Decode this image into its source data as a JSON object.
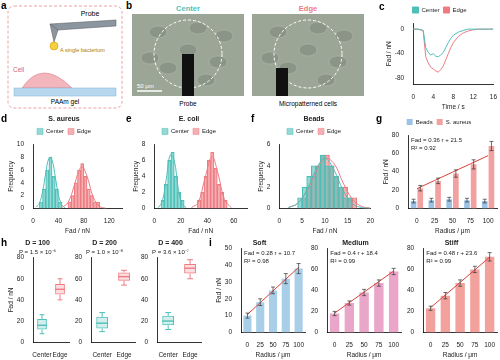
{
  "diagram": {
    "a": {
      "panel": "a",
      "probe": "Probe",
      "bacterium": "A single bacterium",
      "cell": "Cell",
      "substrate": "PAAm gel"
    },
    "b": {
      "panel": "b",
      "images": [
        "Center",
        "Edge"
      ],
      "colors": [
        "#4fbfb8",
        "#ee7b82"
      ],
      "scale_bar": "50 μm",
      "labels": [
        "Probe",
        "Micropatterned cells"
      ]
    }
  },
  "chart_data": [
    {
      "panel": "c",
      "type": "line",
      "x_label": "Time / s",
      "y_label": "Fad / nN",
      "x": [
        0,
        1,
        2,
        2.5,
        3,
        3.5,
        4,
        4.5,
        5,
        5.5,
        6,
        6.5,
        7,
        7.5,
        8,
        9,
        10,
        11,
        12,
        13,
        14,
        15,
        16
      ],
      "xlim": [
        0,
        16
      ],
      "xticks": [
        0,
        4,
        8,
        12,
        16
      ],
      "ylim": [
        -90,
        10
      ],
      "yticks": [
        -80,
        -40,
        0
      ],
      "legend": "top",
      "series": [
        {
          "name": "Center",
          "color": "#4fbfb8",
          "values": [
            0,
            0,
            -2,
            -30,
            -38,
            -42,
            -40,
            -44,
            -45,
            -42,
            -38,
            -30,
            -22,
            -15,
            -10,
            -5,
            -2,
            0,
            0,
            0,
            0,
            0,
            0
          ]
        },
        {
          "name": "Edge",
          "color": "#ee7b82",
          "values": [
            0,
            0,
            -3,
            -45,
            -55,
            -62,
            -65,
            -68,
            -70,
            -66,
            -60,
            -50,
            -40,
            -30,
            -22,
            -12,
            -6,
            -3,
            -1,
            0,
            0,
            0,
            0
          ]
        }
      ]
    },
    {
      "panel": "d",
      "type": "histogram",
      "title": "S. aureus",
      "x_label": "Fad / nN",
      "y_label": "Frequency",
      "bins": [
        0,
        5,
        10,
        15,
        20,
        25,
        30,
        35,
        40,
        45,
        50,
        55,
        60,
        65,
        70,
        75,
        80,
        85,
        90,
        95,
        100,
        105,
        110,
        115,
        120,
        125,
        130,
        135,
        140
      ],
      "xlim": [
        0,
        140
      ],
      "xticks": [
        0,
        40,
        80,
        120
      ],
      "ylim": [
        0,
        10
      ],
      "yticks": [
        0,
        2,
        4,
        6,
        8,
        10
      ],
      "legend": "top",
      "series": [
        {
          "name": "Center",
          "color": "#4fbfb8",
          "values": [
            0,
            0,
            1,
            3,
            6,
            8,
            5,
            3,
            1,
            0,
            0,
            0,
            0,
            0,
            0,
            0,
            0,
            0,
            0,
            0,
            0,
            0,
            0,
            0,
            0,
            0,
            0,
            0
          ],
          "fit": {
            "x": [
              5,
              10,
              15,
              20,
              25,
              30,
              35,
              40,
              45,
              50
            ],
            "values": [
              0.2,
              0.8,
              2.6,
              5.5,
              7.8,
              7.5,
              4.9,
              2.1,
              0.6,
              0.1
            ]
          }
        },
        {
          "name": "Edge",
          "color": "#ee7b82",
          "values": [
            0,
            0,
            0,
            0,
            0,
            0,
            0,
            0,
            0,
            0,
            0,
            1,
            2,
            4,
            6,
            7,
            5,
            3,
            2,
            1,
            1,
            0,
            0,
            0,
            0,
            0,
            0,
            0
          ],
          "fit": {
            "x": [
              45,
              55,
              65,
              70,
              77,
              85,
              95,
              105,
              115
            ],
            "values": [
              0.1,
              0.9,
              3.6,
              5.3,
              6.5,
              5.0,
              1.7,
              0.3,
              0.0
            ]
          }
        }
      ]
    },
    {
      "panel": "e",
      "type": "histogram",
      "title": "E. coli",
      "x_label": "Fad / nN",
      "y_label": "Frequency",
      "bins": [
        0,
        2.5,
        5,
        7.5,
        10,
        12.5,
        15,
        17.5,
        20,
        22.5,
        25,
        27.5,
        30,
        32.5,
        35,
        37.5,
        40,
        42.5,
        45,
        47.5,
        50,
        52.5,
        55,
        57.5,
        60,
        62.5,
        65,
        67.5,
        70
      ],
      "xlim": [
        0,
        70
      ],
      "xticks": [
        0,
        20,
        40,
        60
      ],
      "ylim": [
        0,
        8
      ],
      "yticks": [
        0,
        2,
        4,
        6,
        8
      ],
      "legend": "top",
      "series": [
        {
          "name": "Center",
          "color": "#4fbfb8",
          "values": [
            0,
            0,
            1,
            3,
            6,
            7,
            4,
            2,
            1,
            0,
            0,
            0,
            0,
            0,
            0,
            0,
            0,
            0,
            0,
            0,
            0,
            0,
            0,
            0,
            0,
            0,
            0,
            0
          ],
          "fit": {
            "x": [
              3,
              6,
              9,
              12,
              15,
              18,
              21,
              24
            ],
            "values": [
              0.1,
              0.9,
              3.7,
              6.7,
              6.0,
              2.5,
              0.5,
              0.1
            ]
          }
        },
        {
          "name": "Edge",
          "color": "#ee7b82",
          "values": [
            0,
            0,
            0,
            0,
            0,
            0,
            0,
            0,
            0,
            0,
            0,
            0,
            0,
            1,
            2,
            4,
            6,
            7,
            5,
            3,
            2,
            1,
            0,
            0,
            0,
            0,
            0,
            0
          ],
          "fit": {
            "x": [
              28,
              33,
              38,
              43.5,
              48,
              53,
              58
            ],
            "values": [
              0.1,
              0.7,
              3.6,
              6.5,
              4.4,
              1.1,
              0.1
            ]
          }
        }
      ]
    },
    {
      "panel": "f",
      "type": "histogram",
      "title": "Beads",
      "x_label": "Fad / nN",
      "y_label": "Frequency",
      "bins": [
        0,
        1,
        2,
        3,
        4,
        5,
        6,
        7,
        8,
        9,
        10,
        11,
        12,
        13,
        14,
        15,
        16,
        17,
        18,
        19,
        20
      ],
      "xlim": [
        0,
        20
      ],
      "xticks": [
        0,
        5,
        10,
        15,
        20
      ],
      "ylim": [
        0,
        6
      ],
      "yticks": [
        0,
        2,
        4,
        6
      ],
      "legend": "top",
      "series": [
        {
          "name": "Center",
          "color": "#4fbfb8",
          "values": [
            0,
            0,
            0,
            0,
            1,
            2,
            3,
            4,
            4,
            5,
            4,
            4,
            3,
            2,
            1,
            1,
            0,
            0,
            0,
            0
          ],
          "fit": {
            "x": [
              2,
              4,
              6,
              8,
              10,
              12,
              14,
              16,
              18,
              20
            ],
            "values": [
              0.08,
              0.47,
              1.7,
              3.6,
              4.7,
              3.6,
              1.7,
              0.47,
              0.08,
              0
            ]
          }
        },
        {
          "name": "Edge",
          "color": "#ee7b82",
          "values": [
            0,
            0,
            0,
            0,
            0,
            1,
            2,
            3,
            4,
            5,
            5,
            4,
            3,
            2,
            2,
            1,
            1,
            0,
            0,
            0
          ],
          "fit": {
            "x": [
              2,
              4,
              6,
              8,
              10,
              12,
              14,
              16,
              18,
              20
            ],
            "values": [
              0.09,
              0.46,
              1.6,
              3.4,
              4.7,
              4.2,
              2.4,
              0.9,
              0.2,
              0.03
            ]
          }
        }
      ]
    },
    {
      "panel": "g",
      "type": "bar",
      "x_label": "Radius / μm",
      "y_label": "Fad / nN",
      "categories": [
        "0",
        "25",
        "50",
        "75",
        "100"
      ],
      "ylim": [
        0,
        80
      ],
      "yticks": [
        0,
        20,
        40,
        60,
        80
      ],
      "legend": "top",
      "annotations": [
        "Fad = 0.36 r + 21.5",
        "R² = 0.92"
      ],
      "series": [
        {
          "name": "Beads",
          "color": "#9cc3e6",
          "values": [
            8,
            9,
            10,
            9,
            8
          ],
          "errors": [
            2,
            2,
            2,
            2,
            2
          ]
        },
        {
          "name": "S. aureus",
          "color": "#f3a0a0",
          "values": [
            22,
            30,
            38,
            48,
            68
          ],
          "errors": [
            3,
            3,
            4,
            5,
            5
          ],
          "fit": {
            "color": "#d9413a",
            "values": [
              21.5,
              30.5,
              39.5,
              48.5,
              57.5
            ]
          }
        }
      ]
    },
    {
      "panel": "h",
      "type": "box",
      "title": "D = 100",
      "subtitle": "P = 1.5 × 10⁻⁵",
      "y_label": "Fad / nN",
      "categories": [
        "Center",
        "Edge"
      ],
      "colors": [
        "#4fbfb8",
        "#ee7b82"
      ],
      "ylim": [
        0,
        80
      ],
      "yticks": [
        0,
        20,
        40,
        60,
        80
      ],
      "boxes": [
        {
          "min": 8,
          "q1": 12,
          "median": 16,
          "q3": 22,
          "max": 26
        },
        {
          "min": 40,
          "q1": 45,
          "median": 50,
          "q3": 55,
          "max": 60
        }
      ]
    },
    {
      "type": "box",
      "title": "D = 200",
      "subtitle": "P = 1.0 × 10⁻⁸",
      "categories": [
        "Center",
        "Edge"
      ],
      "colors": [
        "#4fbfb8",
        "#ee7b82"
      ],
      "ylim": [
        0,
        80
      ],
      "yticks": [
        0,
        20,
        40,
        60,
        80
      ],
      "boxes": [
        {
          "min": 10,
          "q1": 13,
          "median": 18,
          "q3": 24,
          "max": 28
        },
        {
          "min": 54,
          "q1": 58,
          "median": 62,
          "q3": 66,
          "max": 68
        }
      ]
    },
    {
      "type": "box",
      "title": "D = 400",
      "subtitle": "P = 3.6 × 10⁻⁷",
      "categories": [
        "Center",
        "Edge"
      ],
      "colors": [
        "#4fbfb8",
        "#ee7b82"
      ],
      "ylim": [
        0,
        80
      ],
      "yticks": [
        0,
        20,
        40,
        60,
        80
      ],
      "boxes": [
        {
          "min": 12,
          "q1": 16,
          "median": 20,
          "q3": 25,
          "max": 28
        },
        {
          "min": 60,
          "q1": 65,
          "median": 70,
          "q3": 74,
          "max": 78
        }
      ]
    },
    {
      "panel": "i",
      "type": "bar",
      "title": "Soft",
      "x_label": "Radius / μm",
      "y_label": "Fad / nN",
      "categories": [
        "0",
        "25",
        "50",
        "75",
        "100"
      ],
      "ylim": [
        0,
        50
      ],
      "yticks": [
        0,
        10,
        20,
        30,
        40,
        50
      ],
      "annotations": [
        "Fad = 0.28 r + 10.7",
        "R² = 0.98"
      ],
      "series": [
        {
          "color": "#a9cfe8",
          "values": [
            10,
            18,
            25,
            32,
            38
          ],
          "errors": [
            1.5,
            2,
            2,
            3,
            3
          ],
          "fit": {
            "color": "#d9413a",
            "values": [
              10.7,
              17.7,
              24.7,
              31.7,
              38.7
            ]
          }
        }
      ]
    },
    {
      "type": "bar",
      "title": "Medium",
      "x_label": "Radius / μm",
      "categories": [
        "0",
        "25",
        "50",
        "75",
        "100"
      ],
      "ylim": [
        0,
        80
      ],
      "yticks": [
        0,
        20,
        40,
        60,
        80
      ],
      "annotations": [
        "Fad = 0.4 r + 18.4",
        "R² = 0.99"
      ],
      "series": [
        {
          "color": "#e9a6c8",
          "values": [
            18,
            28,
            38,
            47,
            58
          ],
          "errors": [
            2,
            2,
            3,
            3,
            3
          ],
          "fit": {
            "color": "#d9413a",
            "values": [
              18.4,
              28.4,
              38.4,
              48.4,
              58.4
            ]
          }
        }
      ]
    },
    {
      "type": "bar",
      "title": "Stiff",
      "x_label": "Radius / μm",
      "categories": [
        "0",
        "25",
        "50",
        "75",
        "100"
      ],
      "ylim": [
        0,
        80
      ],
      "yticks": [
        0,
        20,
        40,
        60,
        80
      ],
      "annotations": [
        "Fad = 0.48 r + 23.6",
        "R² = 0.99"
      ],
      "series": [
        {
          "color": "#f2a19c",
          "values": [
            23,
            35,
            47,
            60,
            72
          ],
          "errors": [
            2,
            3,
            3,
            3,
            4
          ],
          "fit": {
            "color": "#d9413a",
            "values": [
              23.6,
              35.6,
              47.6,
              59.6,
              71.6
            ]
          }
        }
      ]
    }
  ]
}
